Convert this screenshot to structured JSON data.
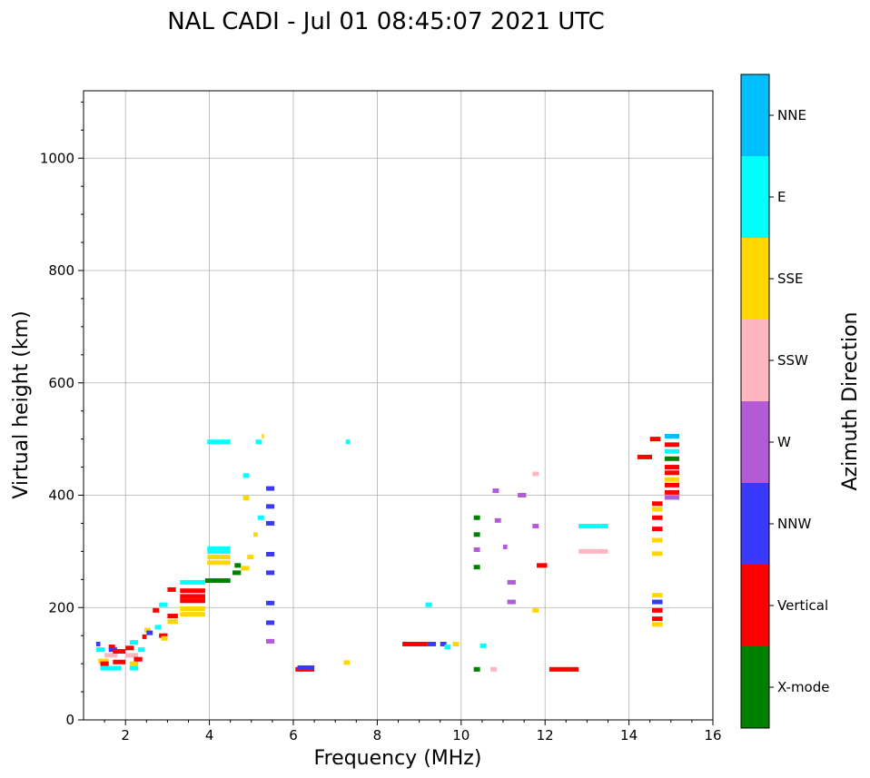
{
  "chart_data": {
    "type": "scatter",
    "title": "NAL CADI - Jul 01 08:45:07 2021 UTC",
    "xlabel": "Frequency (MHz)",
    "ylabel": "Virtual height (km)",
    "xlim": [
      1,
      16
    ],
    "ylim": [
      0,
      1120
    ],
    "xticks": [
      2,
      4,
      6,
      8,
      10,
      12,
      14,
      16
    ],
    "yticks": [
      0,
      200,
      400,
      600,
      800,
      1000
    ],
    "grid": true,
    "colorbar": {
      "label": "Azimuth Direction",
      "categories": [
        "X-mode",
        "Vertical",
        "NNW",
        "W",
        "SSW",
        "SSE",
        "E",
        "NNE"
      ],
      "colors": [
        "#008000",
        "#ff0000",
        "#3a3aff",
        "#b35ad6",
        "#ffb6c1",
        "#ffd700",
        "#00ffff",
        "#00bfff"
      ]
    },
    "points": [
      {
        "f1": 1.3,
        "f2": 1.4,
        "h": 135,
        "c": "NNW"
      },
      {
        "f1": 1.3,
        "f2": 1.5,
        "h": 125,
        "c": "E"
      },
      {
        "f1": 1.35,
        "f2": 1.6,
        "h": 105,
        "c": "SSE"
      },
      {
        "f1": 1.4,
        "f2": 1.6,
        "h": 100,
        "c": "Vertical"
      },
      {
        "f1": 1.4,
        "f2": 1.9,
        "h": 92,
        "c": "E"
      },
      {
        "f1": 1.5,
        "f2": 1.8,
        "h": 115,
        "c": "SSW"
      },
      {
        "f1": 1.6,
        "f2": 1.75,
        "h": 130,
        "c": "Vertical"
      },
      {
        "f1": 1.6,
        "f2": 1.8,
        "h": 125,
        "c": "NNW"
      },
      {
        "f1": 1.7,
        "f2": 2.0,
        "h": 122,
        "c": "Vertical"
      },
      {
        "f1": 1.7,
        "f2": 2.0,
        "h": 103,
        "c": "Vertical"
      },
      {
        "f1": 2.0,
        "f2": 2.2,
        "h": 128,
        "c": "Vertical"
      },
      {
        "f1": 2.0,
        "f2": 2.3,
        "h": 115,
        "c": "SSW"
      },
      {
        "f1": 2.1,
        "f2": 2.3,
        "h": 138,
        "c": "E"
      },
      {
        "f1": 2.1,
        "f2": 2.3,
        "h": 92,
        "c": "E"
      },
      {
        "f1": 2.1,
        "f2": 2.3,
        "h": 100,
        "c": "SSE"
      },
      {
        "f1": 2.2,
        "f2": 2.4,
        "h": 108,
        "c": "Vertical"
      },
      {
        "f1": 2.3,
        "f2": 2.45,
        "h": 125,
        "c": "E"
      },
      {
        "f1": 2.4,
        "f2": 2.5,
        "h": 148,
        "c": "Vertical"
      },
      {
        "f1": 2.45,
        "f2": 2.6,
        "h": 160,
        "c": "SSE"
      },
      {
        "f1": 2.5,
        "f2": 2.65,
        "h": 155,
        "c": "NNW"
      },
      {
        "f1": 2.65,
        "f2": 2.8,
        "h": 195,
        "c": "Vertical"
      },
      {
        "f1": 2.7,
        "f2": 2.85,
        "h": 165,
        "c": "E"
      },
      {
        "f1": 2.8,
        "f2": 3.0,
        "h": 205,
        "c": "E"
      },
      {
        "f1": 2.8,
        "f2": 3.0,
        "h": 150,
        "c": "Vertical"
      },
      {
        "f1": 2.85,
        "f2": 3.0,
        "h": 145,
        "c": "SSE"
      },
      {
        "f1": 3.0,
        "f2": 3.2,
        "h": 232,
        "c": "Vertical"
      },
      {
        "f1": 3.0,
        "f2": 3.25,
        "h": 185,
        "c": "Vertical"
      },
      {
        "f1": 3.0,
        "f2": 3.25,
        "h": 175,
        "c": "SSE"
      },
      {
        "f1": 3.3,
        "f2": 3.9,
        "h": 245,
        "c": "E"
      },
      {
        "f1": 3.3,
        "f2": 3.9,
        "h": 230,
        "c": "Vertical"
      },
      {
        "f1": 3.3,
        "f2": 3.9,
        "h": 220,
        "c": "Vertical"
      },
      {
        "f1": 3.3,
        "f2": 3.9,
        "h": 212,
        "c": "Vertical"
      },
      {
        "f1": 3.3,
        "f2": 3.9,
        "h": 188,
        "c": "SSE"
      },
      {
        "f1": 3.3,
        "f2": 3.9,
        "h": 198,
        "c": "SSE"
      },
      {
        "f1": 3.9,
        "f2": 4.5,
        "h": 248,
        "c": "X-mode"
      },
      {
        "f1": 3.95,
        "f2": 4.5,
        "h": 300,
        "c": "E"
      },
      {
        "f1": 3.95,
        "f2": 4.5,
        "h": 305,
        "c": "E"
      },
      {
        "f1": 3.95,
        "f2": 4.5,
        "h": 290,
        "c": "SSE"
      },
      {
        "f1": 3.95,
        "f2": 4.5,
        "h": 280,
        "c": "SSE"
      },
      {
        "f1": 3.95,
        "f2": 4.5,
        "h": 495,
        "c": "E"
      },
      {
        "f1": 4.55,
        "f2": 4.75,
        "h": 262,
        "c": "X-mode"
      },
      {
        "f1": 4.6,
        "f2": 4.75,
        "h": 275,
        "c": "X-mode"
      },
      {
        "f1": 4.75,
        "f2": 4.95,
        "h": 270,
        "c": "SSE"
      },
      {
        "f1": 4.8,
        "f2": 4.95,
        "h": 395,
        "c": "SSE"
      },
      {
        "f1": 4.8,
        "f2": 4.95,
        "h": 435,
        "c": "E"
      },
      {
        "f1": 4.9,
        "f2": 5.05,
        "h": 290,
        "c": "SSE"
      },
      {
        "f1": 5.05,
        "f2": 5.15,
        "h": 330,
        "c": "SSE"
      },
      {
        "f1": 5.1,
        "f2": 5.25,
        "h": 495,
        "c": "E"
      },
      {
        "f1": 5.15,
        "f2": 5.3,
        "h": 360,
        "c": "E"
      },
      {
        "f1": 5.25,
        "f2": 5.3,
        "h": 505,
        "c": "SSE"
      },
      {
        "f1": 5.35,
        "f2": 5.55,
        "h": 380,
        "c": "NNW"
      },
      {
        "f1": 5.35,
        "f2": 5.55,
        "h": 350,
        "c": "NNW"
      },
      {
        "f1": 5.35,
        "f2": 5.55,
        "h": 295,
        "c": "NNW"
      },
      {
        "f1": 5.35,
        "f2": 5.55,
        "h": 262,
        "c": "NNW"
      },
      {
        "f1": 5.35,
        "f2": 5.55,
        "h": 208,
        "c": "NNW"
      },
      {
        "f1": 5.35,
        "f2": 5.55,
        "h": 173,
        "c": "NNW"
      },
      {
        "f1": 5.35,
        "f2": 5.55,
        "h": 140,
        "c": "W"
      },
      {
        "f1": 5.35,
        "f2": 5.55,
        "h": 412,
        "c": "NNW"
      },
      {
        "f1": 6.05,
        "f2": 6.5,
        "h": 90,
        "c": "Vertical"
      },
      {
        "f1": 6.1,
        "f2": 6.5,
        "h": 93,
        "c": "NNW"
      },
      {
        "f1": 7.2,
        "f2": 7.35,
        "h": 102,
        "c": "SSE"
      },
      {
        "f1": 7.25,
        "f2": 7.35,
        "h": 495,
        "c": "E"
      },
      {
        "f1": 8.6,
        "f2": 9.2,
        "h": 135,
        "c": "Vertical"
      },
      {
        "f1": 9.2,
        "f2": 9.4,
        "h": 135,
        "c": "NNW"
      },
      {
        "f1": 9.5,
        "f2": 9.65,
        "h": 135,
        "c": "NNW"
      },
      {
        "f1": 9.6,
        "f2": 9.75,
        "h": 130,
        "c": "E"
      },
      {
        "f1": 9.8,
        "f2": 9.95,
        "h": 135,
        "c": "SSE"
      },
      {
        "f1": 10.45,
        "f2": 10.6,
        "h": 132,
        "c": "E"
      },
      {
        "f1": 9.15,
        "f2": 9.3,
        "h": 205,
        "c": "E"
      },
      {
        "f1": 10.3,
        "f2": 10.45,
        "h": 360,
        "c": "X-mode"
      },
      {
        "f1": 10.3,
        "f2": 10.45,
        "h": 330,
        "c": "X-mode"
      },
      {
        "f1": 10.3,
        "f2": 10.45,
        "h": 303,
        "c": "W"
      },
      {
        "f1": 10.3,
        "f2": 10.45,
        "h": 272,
        "c": "X-mode"
      },
      {
        "f1": 10.3,
        "f2": 10.45,
        "h": 90,
        "c": "X-mode"
      },
      {
        "f1": 10.7,
        "f2": 10.85,
        "h": 90,
        "c": "SSW"
      },
      {
        "f1": 10.75,
        "f2": 10.9,
        "h": 408,
        "c": "W"
      },
      {
        "f1": 10.8,
        "f2": 10.95,
        "h": 355,
        "c": "W"
      },
      {
        "f1": 11.0,
        "f2": 11.1,
        "h": 308,
        "c": "W"
      },
      {
        "f1": 11.1,
        "f2": 11.3,
        "h": 245,
        "c": "W"
      },
      {
        "f1": 11.1,
        "f2": 11.3,
        "h": 210,
        "c": "W"
      },
      {
        "f1": 11.35,
        "f2": 11.55,
        "h": 400,
        "c": "W"
      },
      {
        "f1": 11.7,
        "f2": 11.85,
        "h": 438,
        "c": "SSW"
      },
      {
        "f1": 11.7,
        "f2": 11.85,
        "h": 345,
        "c": "W"
      },
      {
        "f1": 11.7,
        "f2": 11.85,
        "h": 195,
        "c": "SSE"
      },
      {
        "f1": 11.8,
        "f2": 12.05,
        "h": 275,
        "c": "Vertical"
      },
      {
        "f1": 12.1,
        "f2": 12.8,
        "h": 90,
        "c": "Vertical"
      },
      {
        "f1": 12.8,
        "f2": 13.5,
        "h": 345,
        "c": "E"
      },
      {
        "f1": 12.8,
        "f2": 13.5,
        "h": 300,
        "c": "SSW"
      },
      {
        "f1": 14.2,
        "f2": 14.55,
        "h": 468,
        "c": "Vertical"
      },
      {
        "f1": 14.5,
        "f2": 14.75,
        "h": 500,
        "c": "Vertical"
      },
      {
        "f1": 14.55,
        "f2": 14.8,
        "h": 385,
        "c": "Vertical"
      },
      {
        "f1": 14.55,
        "f2": 14.8,
        "h": 375,
        "c": "SSE"
      },
      {
        "f1": 14.55,
        "f2": 14.8,
        "h": 360,
        "c": "Vertical"
      },
      {
        "f1": 14.55,
        "f2": 14.8,
        "h": 340,
        "c": "Vertical"
      },
      {
        "f1": 14.55,
        "f2": 14.8,
        "h": 320,
        "c": "SSE"
      },
      {
        "f1": 14.55,
        "f2": 14.8,
        "h": 296,
        "c": "SSE"
      },
      {
        "f1": 14.55,
        "f2": 14.8,
        "h": 222,
        "c": "SSE"
      },
      {
        "f1": 14.55,
        "f2": 14.8,
        "h": 210,
        "c": "NNW"
      },
      {
        "f1": 14.55,
        "f2": 14.8,
        "h": 195,
        "c": "Vertical"
      },
      {
        "f1": 14.55,
        "f2": 14.8,
        "h": 180,
        "c": "Vertical"
      },
      {
        "f1": 14.55,
        "f2": 14.8,
        "h": 170,
        "c": "SSE"
      },
      {
        "f1": 14.85,
        "f2": 15.2,
        "h": 505,
        "c": "NNE"
      },
      {
        "f1": 14.85,
        "f2": 15.2,
        "h": 490,
        "c": "Vertical"
      },
      {
        "f1": 14.85,
        "f2": 15.2,
        "h": 478,
        "c": "E"
      },
      {
        "f1": 14.85,
        "f2": 15.2,
        "h": 465,
        "c": "X-mode"
      },
      {
        "f1": 14.85,
        "f2": 15.2,
        "h": 450,
        "c": "Vertical"
      },
      {
        "f1": 14.85,
        "f2": 15.2,
        "h": 440,
        "c": "Vertical"
      },
      {
        "f1": 14.85,
        "f2": 15.2,
        "h": 428,
        "c": "SSE"
      },
      {
        "f1": 14.85,
        "f2": 15.2,
        "h": 418,
        "c": "Vertical"
      },
      {
        "f1": 14.85,
        "f2": 15.2,
        "h": 405,
        "c": "Vertical"
      },
      {
        "f1": 14.85,
        "f2": 15.2,
        "h": 396,
        "c": "W"
      }
    ]
  }
}
